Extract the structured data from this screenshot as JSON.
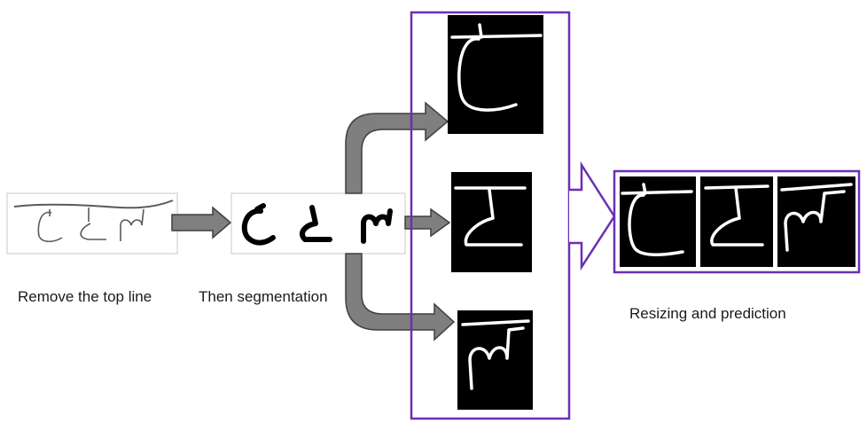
{
  "captions": {
    "step1": "Remove the top line",
    "step2": "Then segmentation",
    "step3": "Resizing and prediction"
  },
  "colors": {
    "frame": "#6b2fb3",
    "arrow_fill": "#7f7f7f",
    "arrow_stroke": "#3f3f3f",
    "ink": "#000000",
    "glyph_on_black": "#ffffff",
    "pencil": "#5a5a5a"
  }
}
